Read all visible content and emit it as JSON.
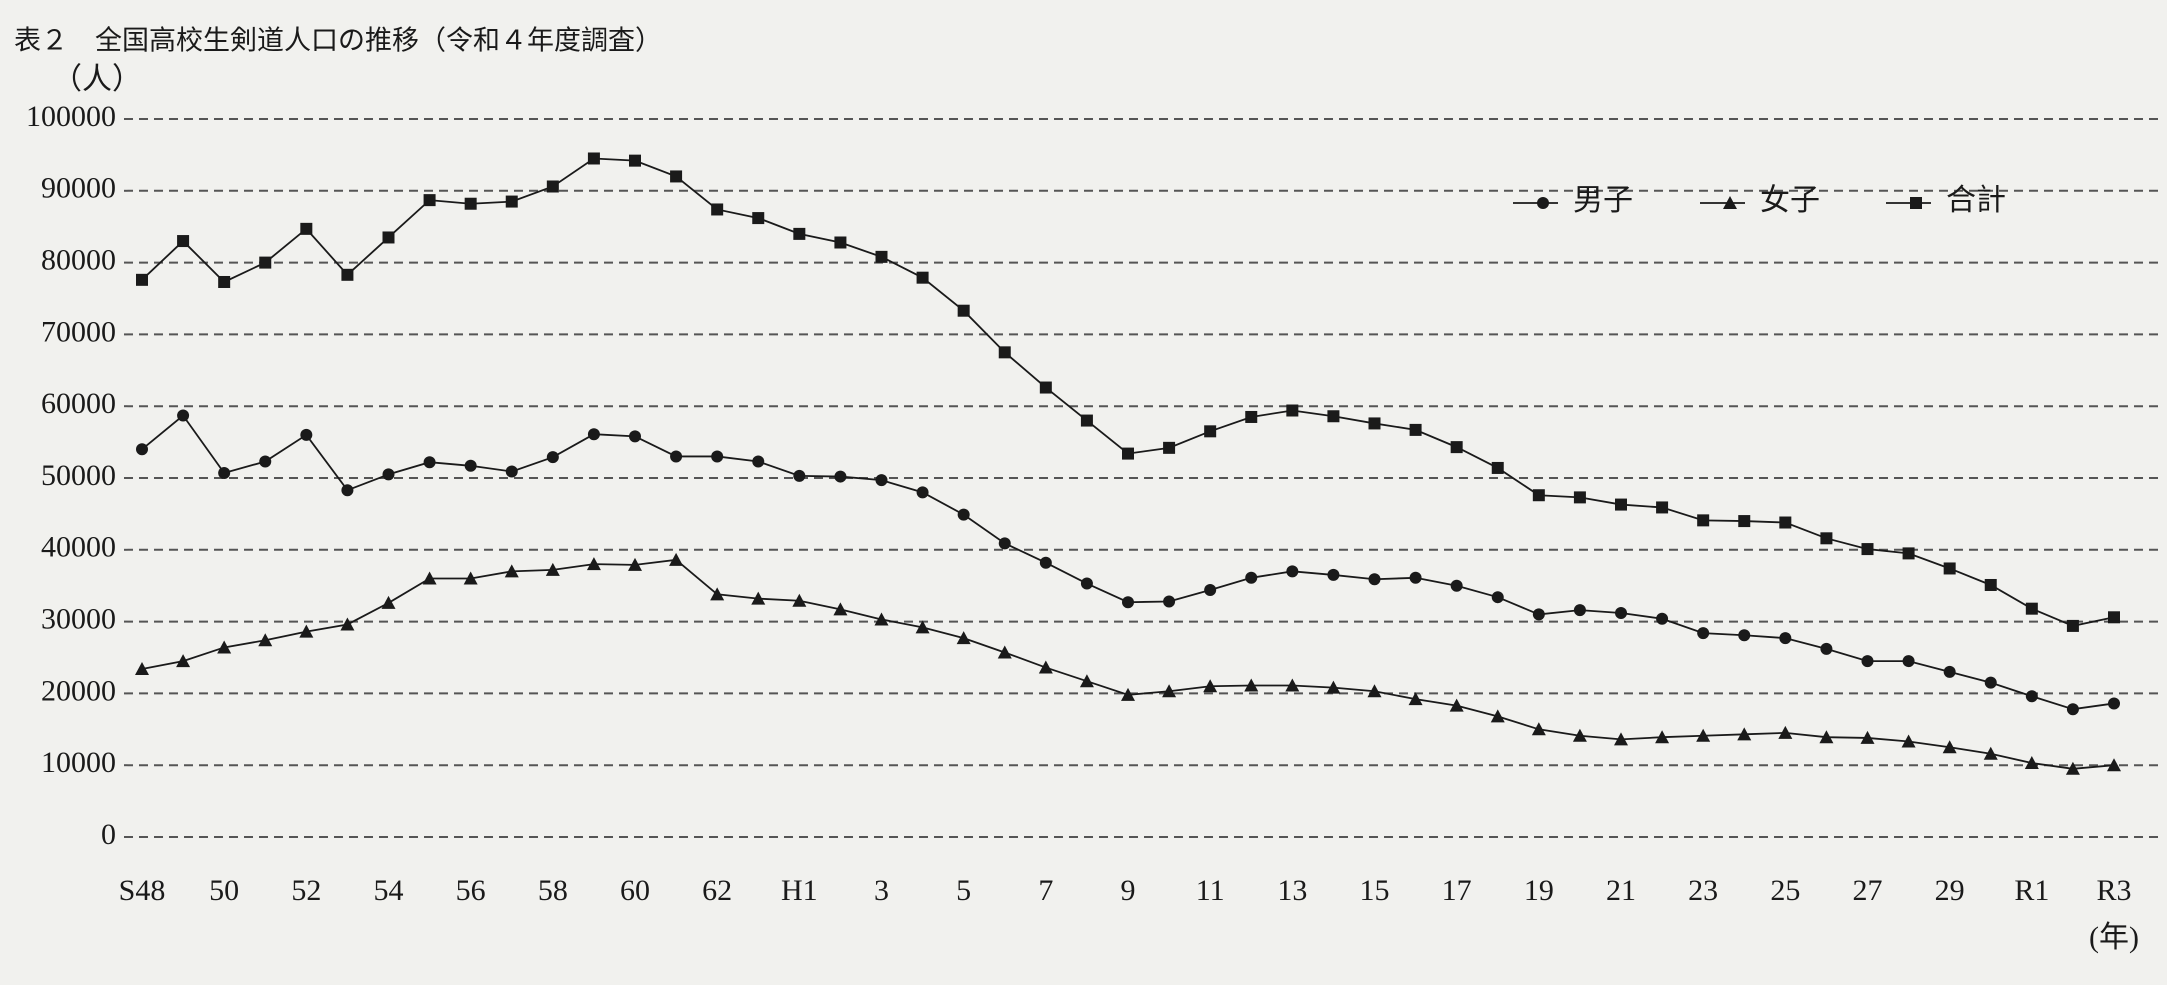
{
  "chart_data": {
    "type": "line",
    "title": "表２　全国高校生剣道人口の推移（令和４年度調査）",
    "y_label": "（人）",
    "x_label": "(年)",
    "categories": [
      "S48",
      null,
      "50",
      null,
      "52",
      null,
      "54",
      null,
      "56",
      null,
      "58",
      null,
      "60",
      null,
      "62",
      null,
      "H1",
      null,
      "3",
      null,
      "5",
      null,
      "7",
      null,
      "9",
      null,
      "11",
      null,
      "13",
      null,
      "15",
      null,
      "17",
      null,
      "19",
      null,
      "21",
      null,
      "23",
      null,
      "25",
      null,
      "27",
      null,
      "29",
      null,
      "R1",
      null,
      "R3"
    ],
    "series": [
      {
        "name": "男子",
        "color": "#1a1a1a",
        "marker": "circle",
        "values": [
          54000,
          58700,
          50700,
          52300,
          56000,
          48300,
          50500,
          52200,
          51700,
          50900,
          52900,
          56100,
          55800,
          53000,
          53000,
          52300,
          50300,
          50200,
          49700,
          48000,
          44900,
          40900,
          38200,
          35300,
          32700,
          32800,
          34400,
          36100,
          37000,
          36500,
          35900,
          36100,
          35000,
          33400,
          31000,
          31600,
          31200,
          30400,
          28400,
          28100,
          27700,
          26200,
          24500,
          24500,
          23000,
          21500,
          19600,
          17800,
          18600
        ]
      },
      {
        "name": "女子",
        "color": "#1a1a1a",
        "marker": "triangle",
        "values": [
          23400,
          24500,
          26400,
          27400,
          28600,
          29600,
          32600,
          36000,
          36000,
          37000,
          37200,
          38000,
          37900,
          38600,
          33800,
          33200,
          32900,
          31700,
          30300,
          29200,
          27700,
          25700,
          23600,
          21700,
          19800,
          20300,
          21000,
          21100,
          21100,
          20800,
          20300,
          19200,
          18300,
          16800,
          15000,
          14100,
          13600,
          13900,
          14100,
          14300,
          14500,
          13900,
          13800,
          13300,
          12500,
          11600,
          10300,
          9500,
          10000
        ]
      },
      {
        "name": "合計",
        "color": "#1a1a1a",
        "marker": "square",
        "values": [
          77600,
          83000,
          77300,
          80000,
          84700,
          78300,
          83500,
          88700,
          88200,
          88500,
          90600,
          94500,
          94200,
          92000,
          87400,
          86200,
          84000,
          82800,
          80800,
          77900,
          73300,
          67500,
          62600,
          58000,
          53400,
          54200,
          56500,
          58500,
          59400,
          58600,
          57600,
          56700,
          54300,
          51400,
          47600,
          47300,
          46300,
          45900,
          44100,
          44000,
          43800,
          41600,
          40100,
          39500,
          37400,
          35100,
          31800,
          29400,
          30600
        ]
      }
    ],
    "ylim": [
      0,
      100000
    ],
    "yticks": [
      0,
      10000,
      20000,
      30000,
      40000,
      50000,
      60000,
      70000,
      80000,
      90000,
      100000
    ],
    "grid": true,
    "legend": "top-right"
  }
}
